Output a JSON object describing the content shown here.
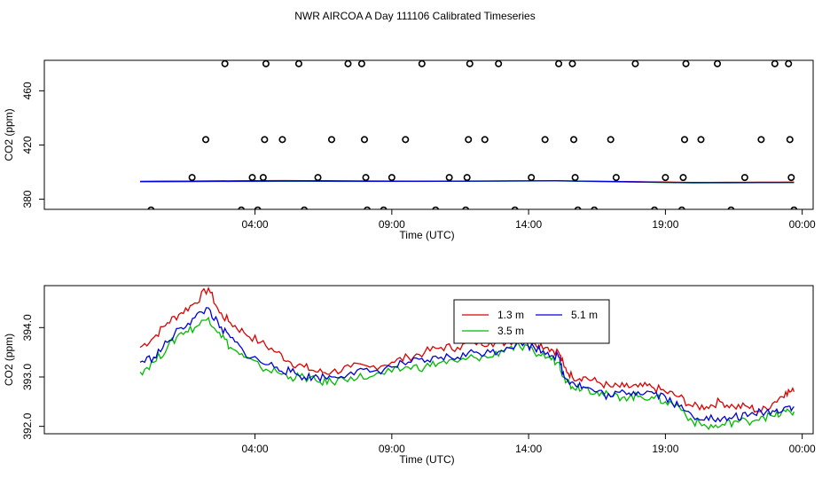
{
  "title": "NWR AIRCOA A  Day 111106  Calibrated Timeseries",
  "chart_data": [
    {
      "type": "scatter",
      "name": "top",
      "xlabel": "Time (UTC)",
      "ylabel": "CO2 (ppm)",
      "xlim": [
        -3.7,
        24.4
      ],
      "ylim": [
        372.5,
        482.5
      ],
      "xticks": [
        {
          "v": 4,
          "label": "04:00"
        },
        {
          "v": 9,
          "label": "09:00"
        },
        {
          "v": 14,
          "label": "14:00"
        },
        {
          "v": 19,
          "label": "19:00"
        },
        {
          "v": 24,
          "label": "00:00"
        }
      ],
      "yticks": [
        {
          "v": 380,
          "label": "380"
        },
        {
          "v": 420,
          "label": "420"
        },
        {
          "v": 460,
          "label": "460"
        }
      ],
      "outliers": [
        [
          0.2,
          372
        ],
        [
          1.7,
          396
        ],
        [
          2.2,
          424
        ],
        [
          2.9,
          480
        ],
        [
          3.5,
          372
        ],
        [
          3.9,
          396
        ],
        [
          4.3,
          396
        ],
        [
          4.35,
          424
        ],
        [
          4.4,
          480
        ],
        [
          4.1,
          372
        ],
        [
          5.0,
          424
        ],
        [
          5.6,
          480
        ],
        [
          5.8,
          372
        ],
        [
          6.3,
          396
        ],
        [
          6.8,
          424
        ],
        [
          7.4,
          480
        ],
        [
          7.9,
          480
        ],
        [
          8.0,
          424
        ],
        [
          8.05,
          396
        ],
        [
          8.1,
          372
        ],
        [
          8.7,
          372
        ],
        [
          9.0,
          396
        ],
        [
          9.5,
          424
        ],
        [
          10.1,
          480
        ],
        [
          10.6,
          372
        ],
        [
          11.1,
          396
        ],
        [
          11.7,
          372
        ],
        [
          11.75,
          396
        ],
        [
          11.8,
          424
        ],
        [
          11.85,
          480
        ],
        [
          12.4,
          424
        ],
        [
          12.9,
          480
        ],
        [
          13.5,
          372
        ],
        [
          14.1,
          396
        ],
        [
          14.6,
          424
        ],
        [
          15.1,
          480
        ],
        [
          15.6,
          480
        ],
        [
          15.65,
          424
        ],
        [
          15.7,
          396
        ],
        [
          15.8,
          372
        ],
        [
          16.4,
          372
        ],
        [
          17.0,
          424
        ],
        [
          17.2,
          396
        ],
        [
          17.9,
          480
        ],
        [
          18.6,
          372
        ],
        [
          19.0,
          396
        ],
        [
          19.6,
          372
        ],
        [
          19.65,
          396
        ],
        [
          19.7,
          424
        ],
        [
          19.75,
          480
        ],
        [
          20.3,
          424
        ],
        [
          20.9,
          480
        ],
        [
          21.4,
          372
        ],
        [
          21.9,
          396
        ],
        [
          22.5,
          424
        ],
        [
          23.0,
          480
        ],
        [
          23.5,
          480
        ],
        [
          23.55,
          424
        ],
        [
          23.6,
          396
        ],
        [
          23.7,
          372
        ]
      ],
      "series": [
        {
          "name": "1.3 m",
          "color": "#dd0000",
          "x": [
            -0.2,
            5,
            10,
            15,
            20,
            23.7
          ],
          "y": [
            393.2,
            393.8,
            393.3,
            393.6,
            392.4,
            392.6
          ]
        },
        {
          "name": "3.5 m",
          "color": "#00bb00",
          "x": [
            -0.2,
            5,
            10,
            15,
            20,
            23.7
          ],
          "y": [
            392.9,
            393.2,
            393.1,
            393.5,
            392.0,
            392.3
          ]
        },
        {
          "name": "5.1 m",
          "color": "#0000dd",
          "x": [
            -0.2,
            5,
            10,
            15,
            20,
            23.7
          ],
          "y": [
            393.0,
            393.4,
            393.2,
            393.6,
            392.2,
            392.4
          ]
        }
      ]
    },
    {
      "type": "line",
      "name": "bottom",
      "xlabel": "Time (UTC)",
      "ylabel": "CO2 (ppm)",
      "xlim": [
        -3.7,
        24.4
      ],
      "ylim": [
        391.85,
        394.85
      ],
      "xticks": [
        {
          "v": 4,
          "label": "04:00"
        },
        {
          "v": 9,
          "label": "09:00"
        },
        {
          "v": 14,
          "label": "14:00"
        },
        {
          "v": 19,
          "label": "19:00"
        },
        {
          "v": 24,
          "label": "00:00"
        }
      ],
      "yticks": [
        {
          "v": 392.0,
          "label": "392.0"
        },
        {
          "v": 393.0,
          "label": "393.0"
        },
        {
          "v": 394.0,
          "label": "394.0"
        }
      ],
      "legend": {
        "position": "top-center-right",
        "entries": [
          "1.3 m",
          "5.1 m",
          "3.5 m"
        ]
      },
      "series": [
        {
          "name": "1.3 m",
          "color": "#dd0000",
          "x": [
            -0.2,
            0.3,
            0.8,
            1.3,
            1.8,
            2.3,
            2.7,
            3.1,
            3.6,
            4.2,
            4.8,
            5.3,
            5.8,
            6.3,
            6.8,
            7.5,
            8.2,
            9.0,
            9.6,
            10.2,
            10.8,
            11.4,
            12.0,
            12.6,
            13.2,
            13.7,
            14.2,
            14.7,
            15.1,
            15.3,
            15.6,
            16.0,
            16.5,
            17.0,
            17.5,
            18.0,
            18.5,
            19.0,
            19.5,
            20.0,
            20.5,
            21.0,
            21.5,
            22.0,
            22.5,
            23.0,
            23.4,
            23.7
          ],
          "y": [
            393.6,
            393.8,
            394.1,
            394.3,
            394.5,
            394.8,
            394.3,
            394.1,
            393.9,
            393.7,
            393.5,
            393.3,
            393.2,
            393.1,
            393.1,
            393.2,
            393.2,
            393.3,
            393.4,
            393.5,
            393.6,
            393.6,
            393.7,
            393.7,
            393.7,
            393.8,
            393.7,
            393.6,
            393.5,
            393.2,
            393.0,
            393.0,
            392.9,
            392.8,
            392.8,
            392.8,
            392.8,
            392.7,
            392.6,
            392.4,
            392.4,
            392.5,
            392.4,
            392.4,
            392.3,
            392.5,
            392.7,
            392.7
          ]
        },
        {
          "name": "3.5 m",
          "color": "#00bb00",
          "x": [
            -0.2,
            0.3,
            0.8,
            1.3,
            1.8,
            2.3,
            2.7,
            3.1,
            3.6,
            4.2,
            4.8,
            5.3,
            5.8,
            6.3,
            6.8,
            7.5,
            8.2,
            9.0,
            9.6,
            10.2,
            10.8,
            11.4,
            12.0,
            12.6,
            13.2,
            13.7,
            14.2,
            14.7,
            15.1,
            15.3,
            15.6,
            16.0,
            16.5,
            17.0,
            17.5,
            18.0,
            18.5,
            19.0,
            19.5,
            20.0,
            20.5,
            21.0,
            21.5,
            22.0,
            22.5,
            23.0,
            23.4,
            23.7
          ],
          "y": [
            393.1,
            393.3,
            393.6,
            393.9,
            394.0,
            394.2,
            393.9,
            393.6,
            393.4,
            393.2,
            393.1,
            393.0,
            393.0,
            392.9,
            392.9,
            393.0,
            393.0,
            393.1,
            393.2,
            393.2,
            393.3,
            393.3,
            393.4,
            393.4,
            393.6,
            393.6,
            393.5,
            393.4,
            393.3,
            393.0,
            392.8,
            392.8,
            392.7,
            392.6,
            392.6,
            392.6,
            392.6,
            392.5,
            392.4,
            392.1,
            392.0,
            392.0,
            392.1,
            392.1,
            392.2,
            392.2,
            392.3,
            392.3
          ]
        },
        {
          "name": "5.1 m",
          "color": "#0000dd",
          "x": [
            -0.2,
            0.3,
            0.8,
            1.3,
            1.8,
            2.3,
            2.7,
            3.1,
            3.6,
            4.2,
            4.8,
            5.3,
            5.8,
            6.3,
            6.8,
            7.5,
            8.2,
            9.0,
            9.6,
            10.2,
            10.8,
            11.4,
            12.0,
            12.6,
            13.2,
            13.7,
            14.2,
            14.7,
            15.1,
            15.3,
            15.6,
            16.0,
            16.5,
            17.0,
            17.5,
            18.0,
            18.5,
            19.0,
            19.5,
            20.0,
            20.5,
            21.0,
            21.5,
            22.0,
            22.5,
            23.0,
            23.4,
            23.7
          ],
          "y": [
            393.3,
            393.4,
            393.7,
            394.0,
            394.2,
            394.4,
            394.0,
            393.8,
            393.5,
            393.3,
            393.2,
            393.1,
            393.0,
            393.0,
            393.0,
            393.1,
            393.1,
            393.2,
            393.3,
            393.3,
            393.4,
            393.4,
            393.5,
            393.5,
            393.6,
            393.7,
            393.6,
            393.5,
            393.4,
            393.0,
            392.9,
            392.8,
            392.7,
            392.6,
            392.7,
            392.7,
            392.7,
            392.6,
            392.4,
            392.2,
            392.2,
            392.1,
            392.2,
            392.2,
            392.3,
            392.3,
            392.4,
            392.4
          ]
        }
      ]
    }
  ]
}
